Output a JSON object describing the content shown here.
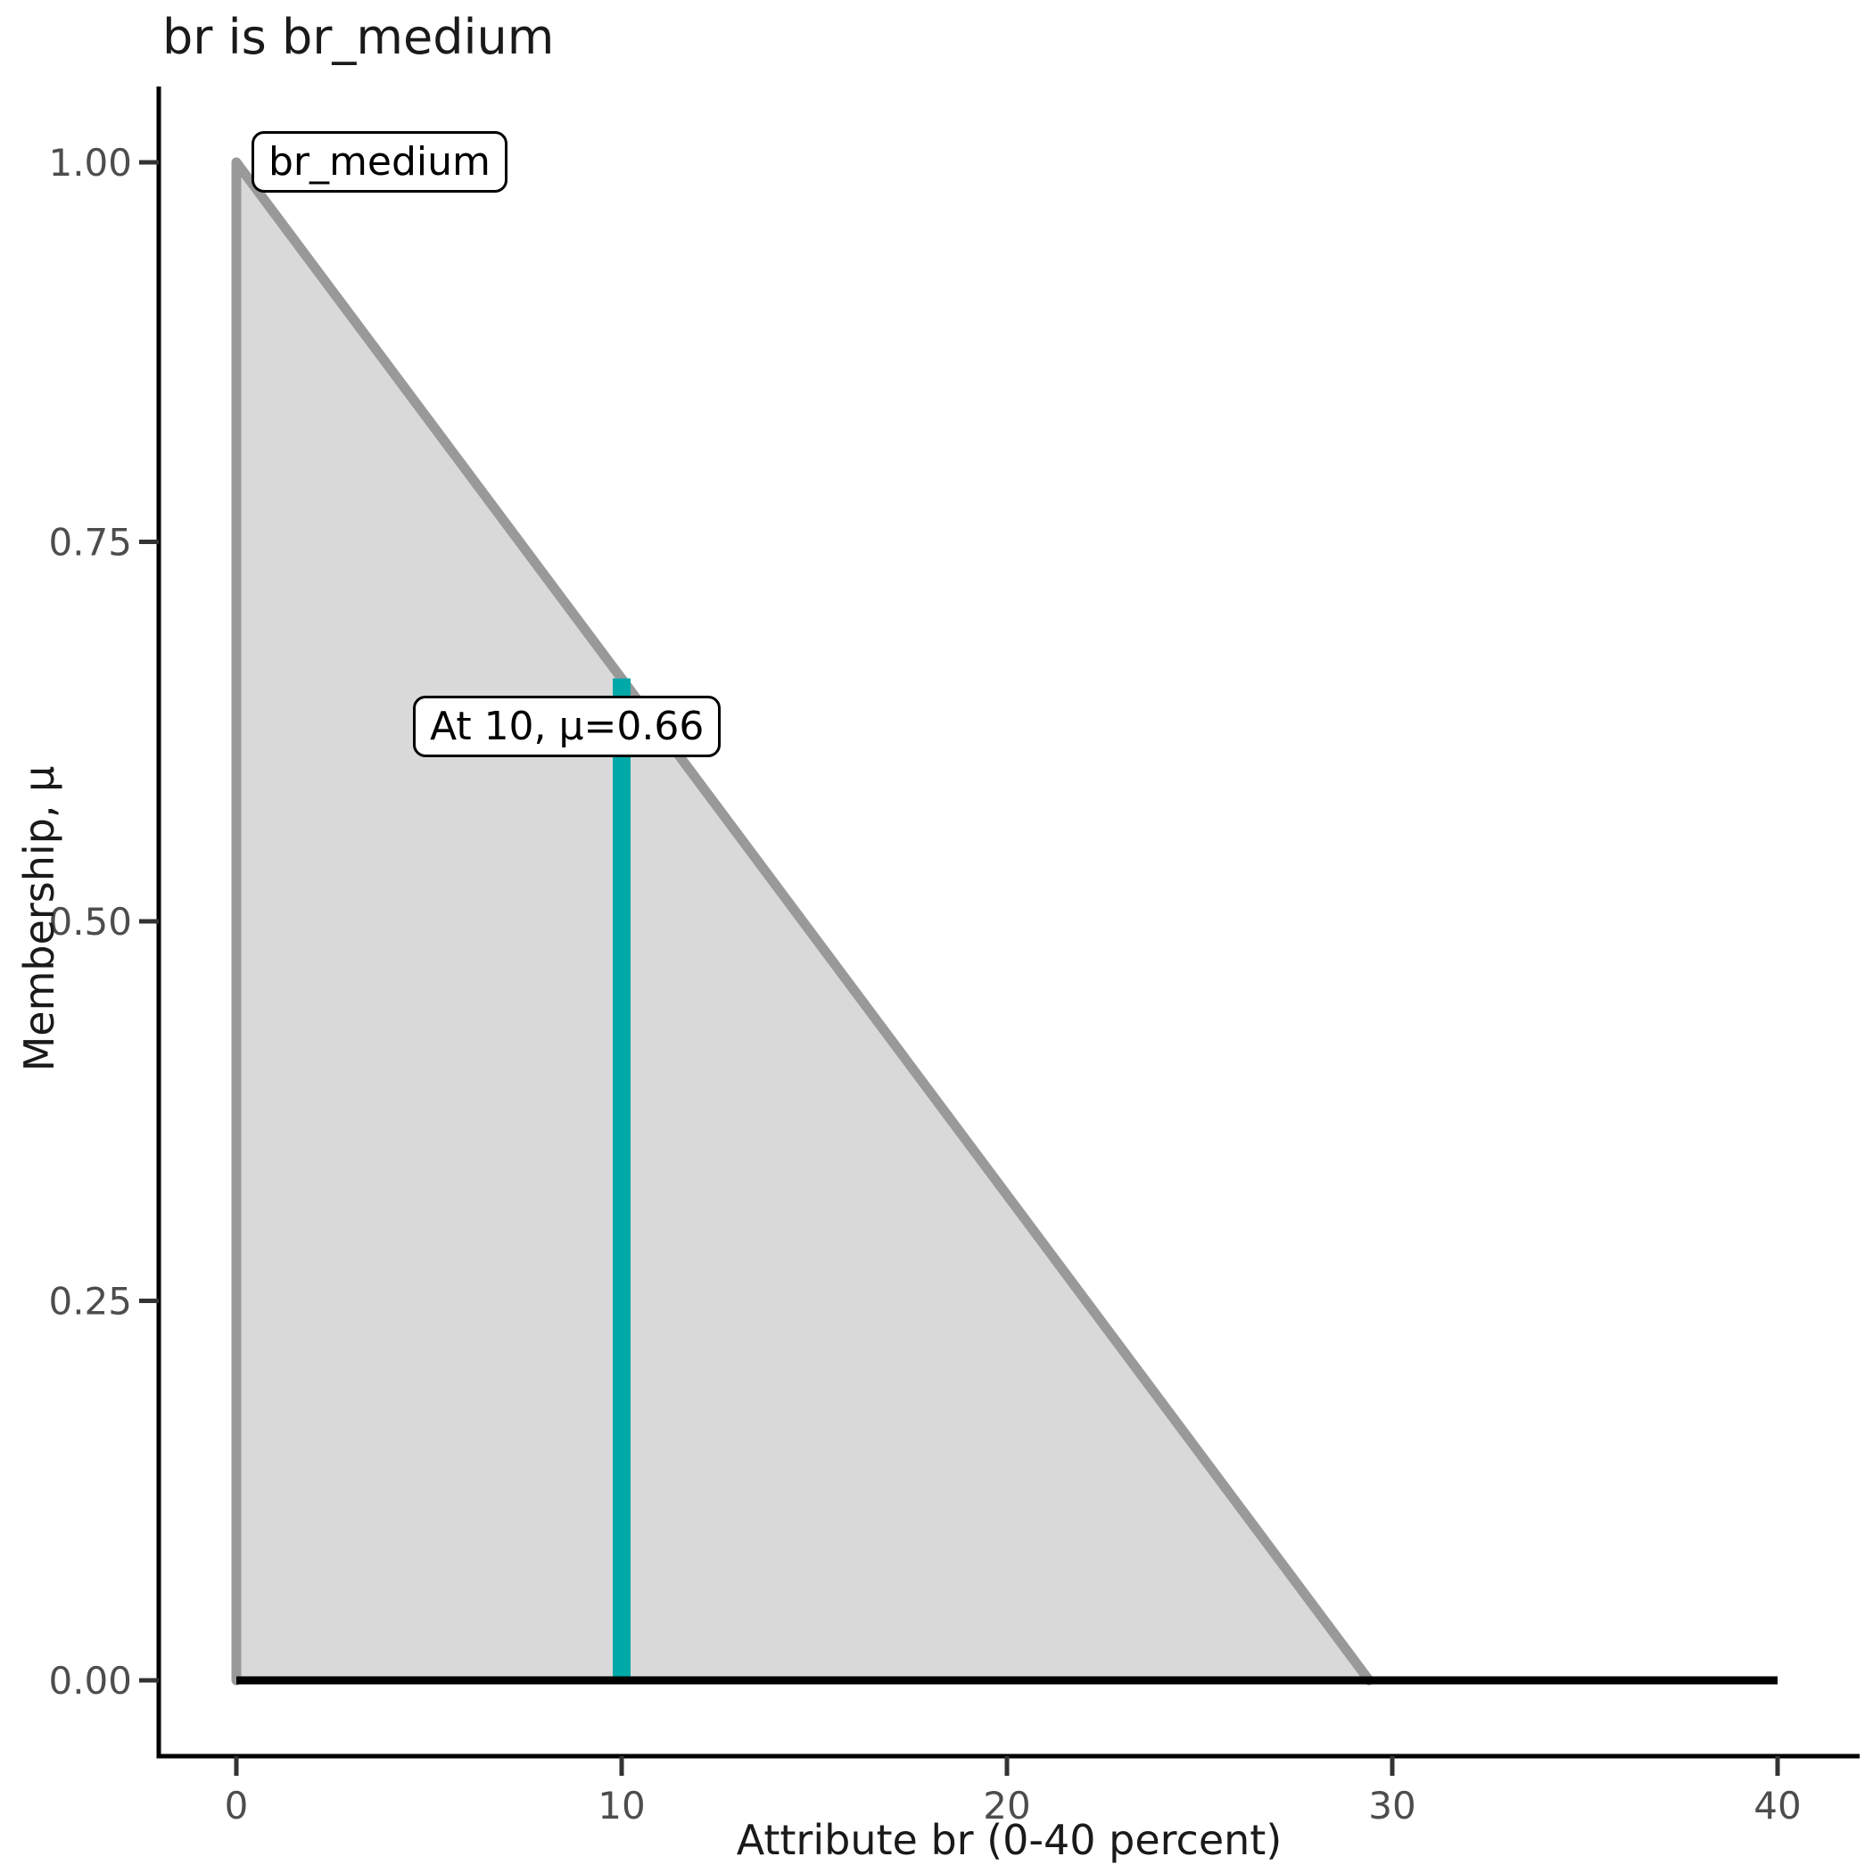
{
  "chart_data": {
    "type": "area",
    "title": "br is br_medium",
    "xlabel": "Attribute br (0-40 percent)",
    "ylabel": "Membership, μ",
    "xlim": [
      0,
      40
    ],
    "ylim": [
      0,
      1
    ],
    "grid": false,
    "legend": false,
    "x_tick_values": [
      0,
      10,
      20,
      30,
      40
    ],
    "x_tick_labels": [
      "0",
      "10",
      "20",
      "30",
      "40"
    ],
    "y_tick_values": [
      0,
      0.25,
      0.5,
      0.75,
      1.0
    ],
    "y_tick_labels": [
      "0.00",
      "0.25",
      "0.50",
      "0.75",
      "1.00"
    ],
    "membership_function": {
      "name": "br_medium",
      "points": [
        [
          0,
          0
        ],
        [
          0,
          1
        ],
        [
          29.4,
          0
        ]
      ],
      "line_color": "#999999",
      "fill_color": "#D9D9D9"
    },
    "baseline": {
      "from": [
        0,
        0
      ],
      "to": [
        40,
        0
      ],
      "color": "#000000"
    },
    "marker_line": {
      "x": 10,
      "mu": 0.66,
      "color": "#00A8A8"
    },
    "set_label_annotation": {
      "text": "br_medium"
    },
    "marker_annotation": {
      "text": "At 10, μ=0.66"
    },
    "axis_color": "#000000",
    "tick_color": "#333333",
    "tick_label_color": "#4D4D4D"
  }
}
